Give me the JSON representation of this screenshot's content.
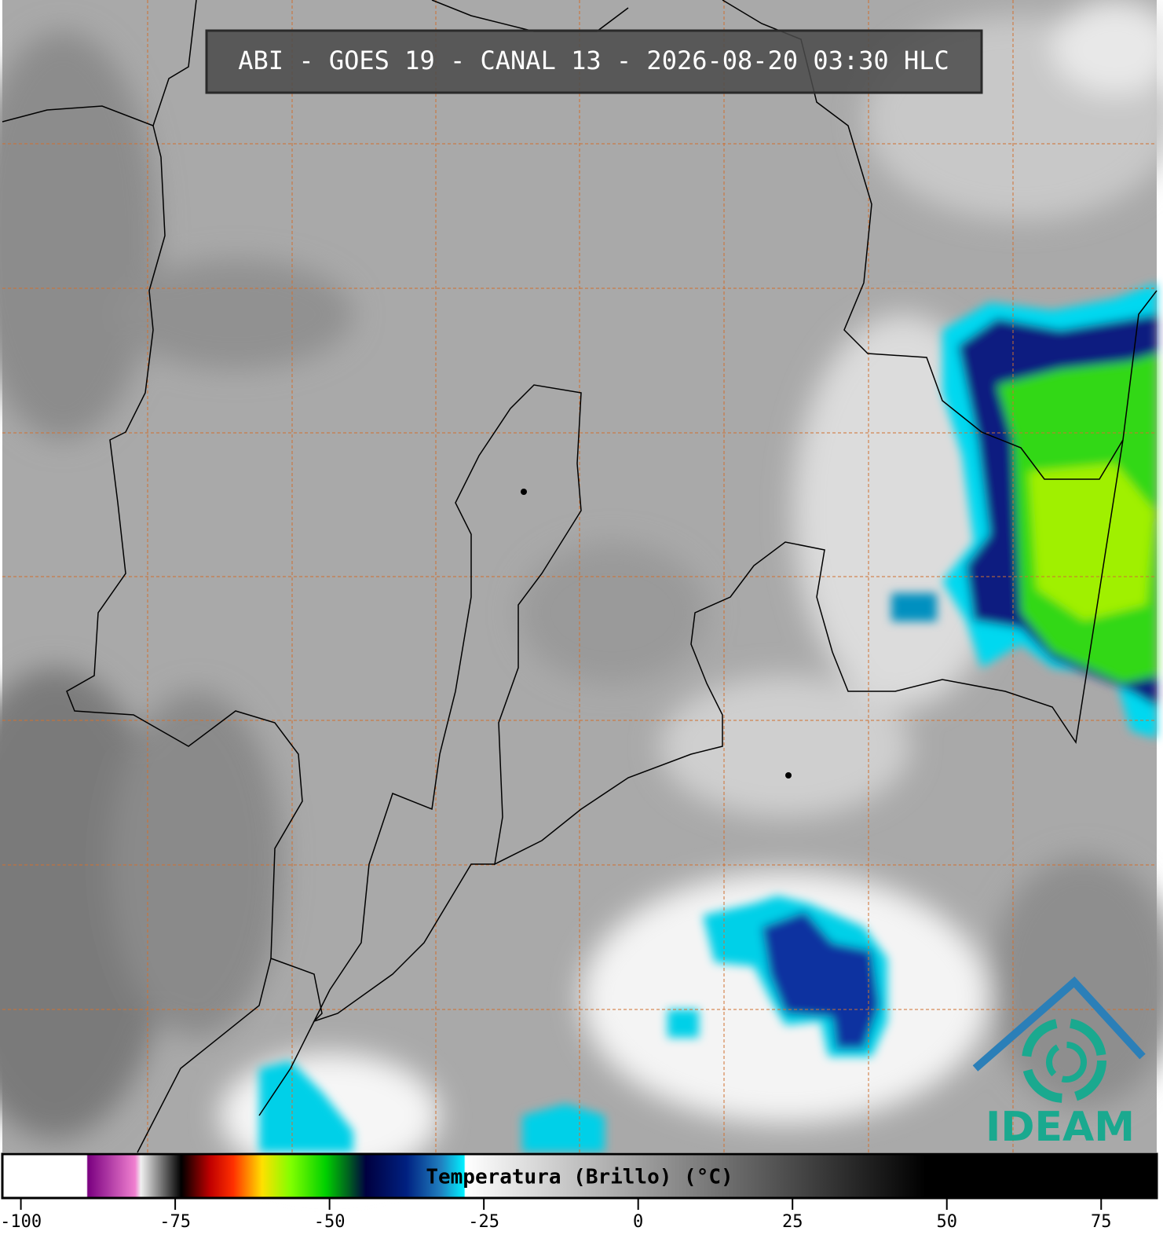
{
  "header": {
    "title": "ABI - GOES 19 - CANAL 13 - 2026-08-20 03:30 HLC"
  },
  "colorbar": {
    "label": "Temperatura (Brillo) (°C)",
    "lim": [
      -103,
      84
    ],
    "ticks": [
      -100,
      -75,
      -50,
      -25,
      0,
      25,
      50,
      75
    ]
  },
  "logo": {
    "text": "IDEAM"
  }
}
